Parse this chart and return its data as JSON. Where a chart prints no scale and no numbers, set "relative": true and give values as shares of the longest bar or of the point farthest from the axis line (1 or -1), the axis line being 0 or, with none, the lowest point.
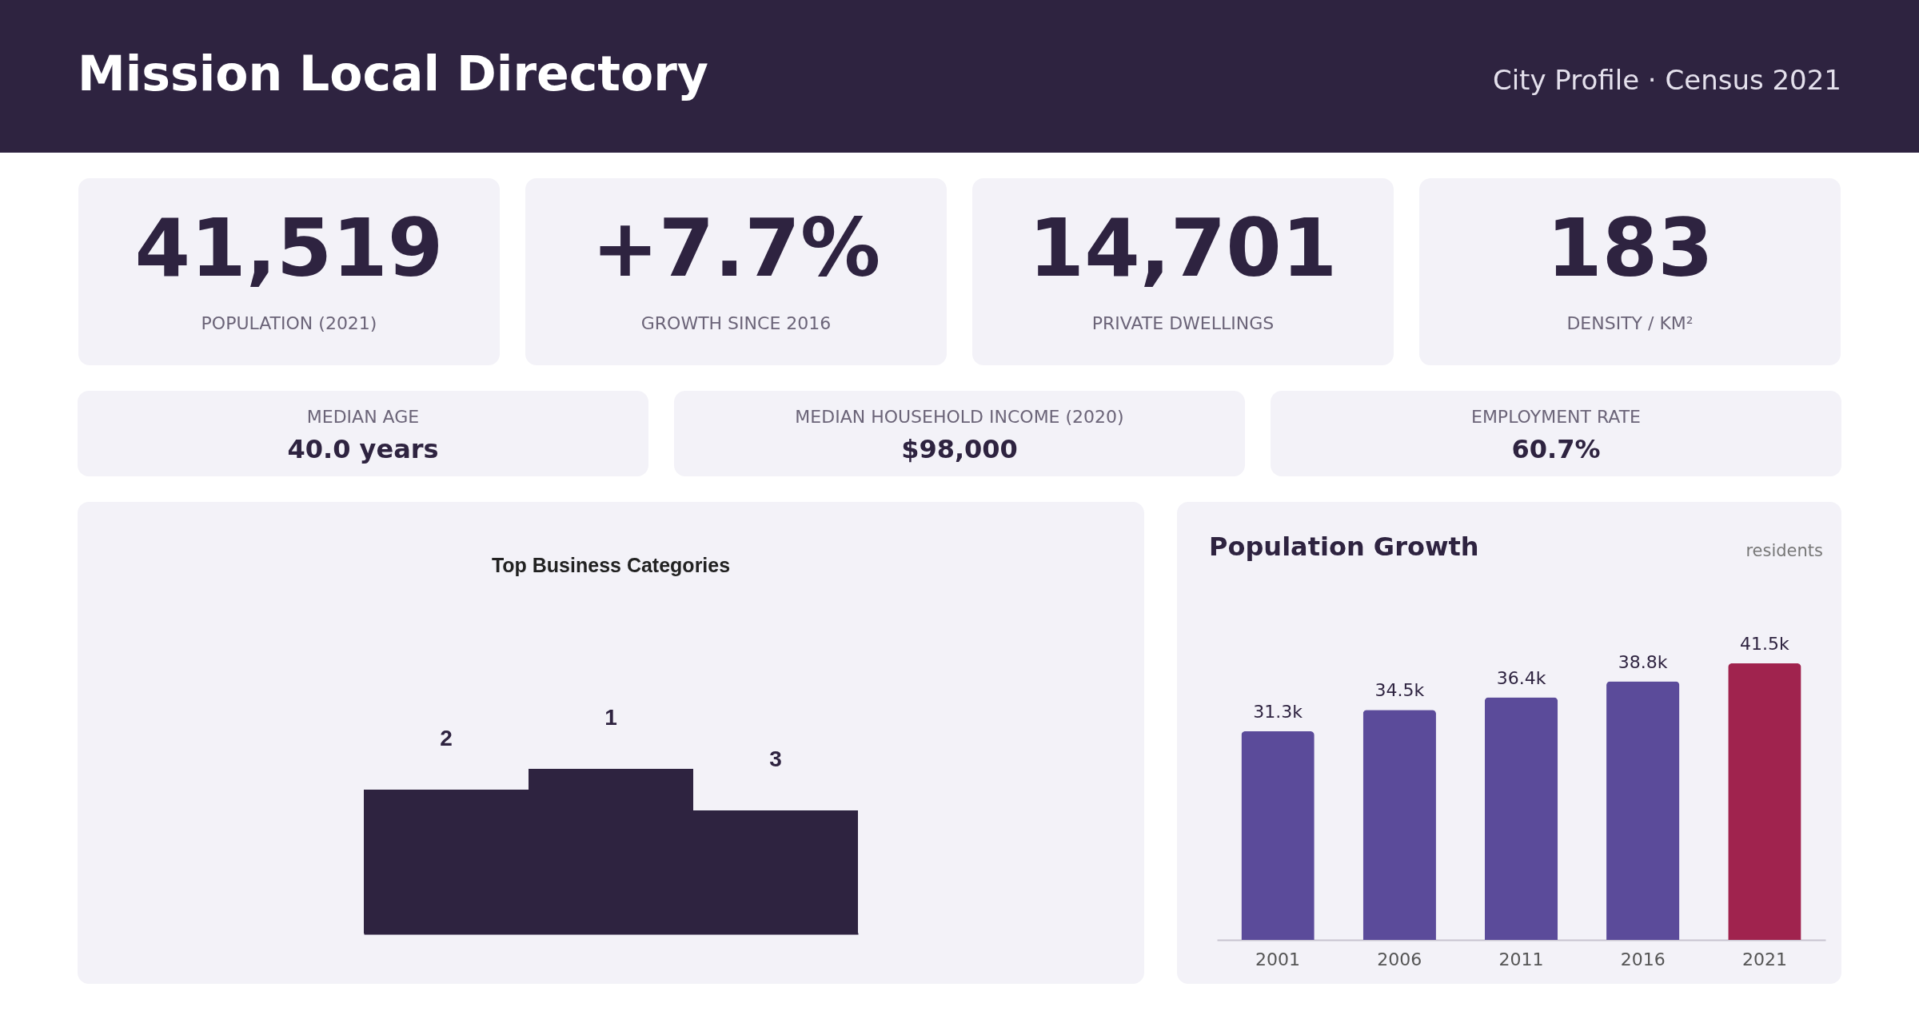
{
  "chart_data": [
    {
      "type": "other",
      "title": "Mission Local Directory",
      "subtitle": "City Profile · Census 2021",
      "annotations": [
        "41,519",
        "POPULATION (2021)",
        "+7.7%",
        "GROWTH SINCE 2016",
        "14,701",
        "PRIVATE DWELLINGS",
        "183",
        "DENSITY / KM²",
        "MEDIAN AGE",
        "40.0 years",
        "MEDIAN HOUSEHOLD INCOME (2020)",
        "$98,000",
        "EMPLOYMENT RATE",
        "60.7%"
      ]
    },
    {
      "type": "bar",
      "title": "Top Business Categories",
      "categories": [
        null,
        null,
        null
      ],
      "values": [
        0.874,
        1,
        0.748
      ],
      "relative": true,
      "color": "#2e2340",
      "annotations": [
        "2",
        "1",
        "3"
      ]
    },
    {
      "type": "bar",
      "title": "Population Growth",
      "ylabel": "residents",
      "categories": [
        "2001",
        "2006",
        "2011",
        "2016",
        "2021"
      ],
      "values": [
        31300,
        34500,
        36400,
        38800,
        41500
      ],
      "value_labels": [
        "31.3k",
        "34.5k",
        "36.4k",
        "38.8k",
        "41.5k"
      ],
      "colors": [
        "#5b4b9a",
        "#5b4b9a",
        "#5b4b9a",
        "#5b4b9a",
        "#a0234e"
      ]
    }
  ]
}
